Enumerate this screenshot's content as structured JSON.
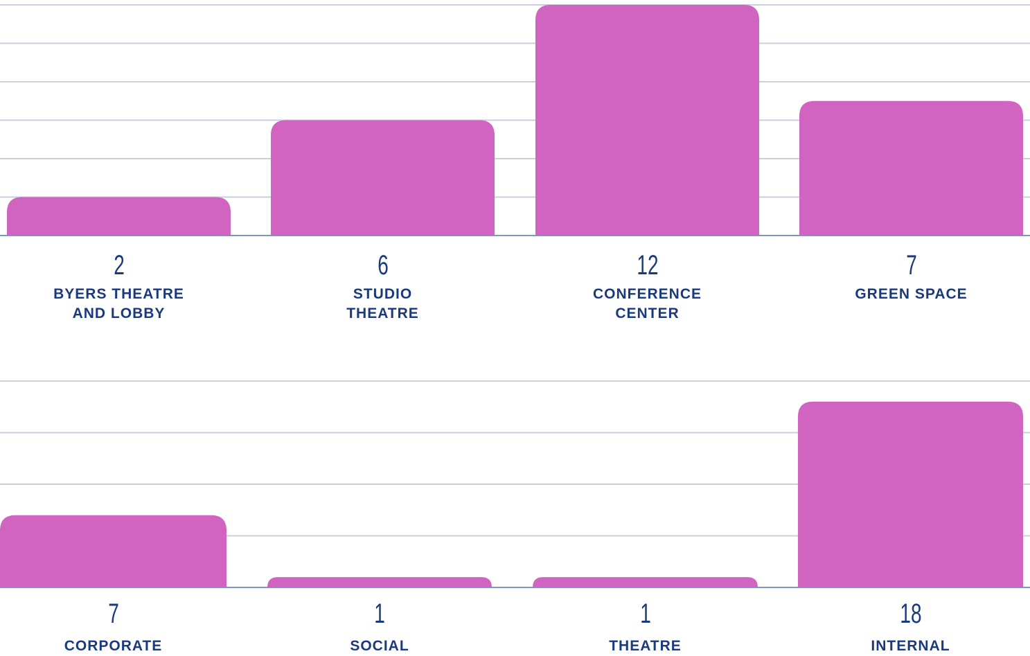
{
  "chart_data": [
    {
      "type": "bar",
      "categories": [
        "BYERS THEATRE\nAND LOBBY",
        "STUDIO\nTHEATRE",
        "CONFERENCE\nCENTER",
        "GREEN SPACE"
      ],
      "values": [
        2,
        6,
        12,
        7
      ],
      "color": "#d264c1",
      "ylim": [
        0,
        12
      ],
      "yticks": [
        0,
        2,
        4,
        6,
        8,
        10,
        12
      ],
      "grid": true
    },
    {
      "type": "bar",
      "categories": [
        "CORPORATE",
        "SOCIAL",
        "THEATRE",
        "INTERNAL"
      ],
      "values": [
        7,
        1,
        1,
        18
      ],
      "color": "#d264c1",
      "ylim": [
        0,
        20
      ],
      "yticks": [
        0,
        5,
        10,
        15,
        20
      ],
      "grid": true
    }
  ]
}
